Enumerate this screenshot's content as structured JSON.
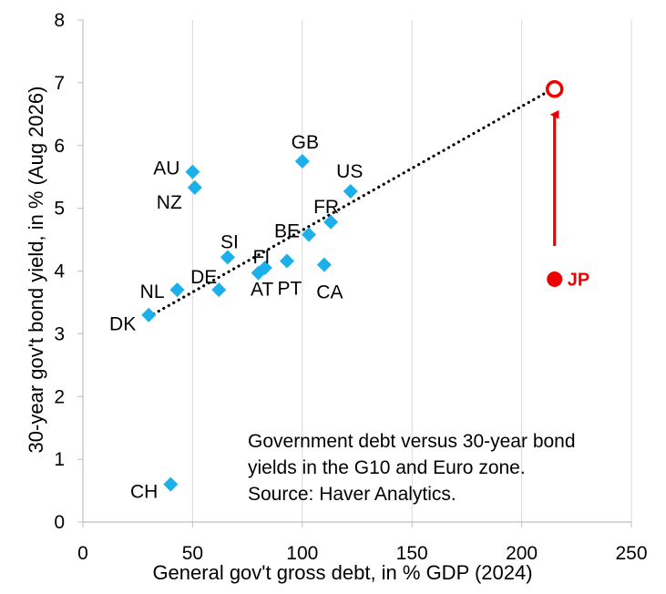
{
  "colors": {
    "marker": "#1cb0ea",
    "highlight": "#ee0000",
    "grid": "#d9d9d9",
    "trend": "#000000",
    "axis": "#bfbfbf"
  },
  "chart_data": {
    "type": "scatter",
    "xlabel": "General gov't gross debt, in % GDP (2024)",
    "ylabel": "30-year gov't bond yield, in % (Aug 2026)",
    "xlim": [
      0,
      250
    ],
    "ylim": [
      0,
      8
    ],
    "x_ticks": [
      "0",
      "50",
      "100",
      "150",
      "200",
      "250"
    ],
    "y_ticks": [
      "0",
      "1",
      "2",
      "3",
      "4",
      "5",
      "6",
      "7",
      "8"
    ],
    "grid": "vertical",
    "points": [
      {
        "label": "DK",
        "x": 30,
        "y": 3.3
      },
      {
        "label": "CH",
        "x": 40,
        "y": 0.6
      },
      {
        "label": "NL",
        "x": 43,
        "y": 3.7
      },
      {
        "label": "AU",
        "x": 50,
        "y": 5.58
      },
      {
        "label": "NZ",
        "x": 51,
        "y": 5.33
      },
      {
        "label": "DE",
        "x": 62,
        "y": 3.7
      },
      {
        "label": "SI",
        "x": 66,
        "y": 4.22
      },
      {
        "label": "AT",
        "x": 80,
        "y": 3.97
      },
      {
        "label": "FI",
        "x": 83,
        "y": 4.05
      },
      {
        "label": "PT",
        "x": 93,
        "y": 4.16
      },
      {
        "label": "GB",
        "x": 100,
        "y": 5.75
      },
      {
        "label": "BE",
        "x": 103,
        "y": 4.58
      },
      {
        "label": "CA",
        "x": 110,
        "y": 4.1
      },
      {
        "label": "FR",
        "x": 113,
        "y": 4.78
      },
      {
        "label": "US",
        "x": 122,
        "y": 5.27
      }
    ],
    "highlight": {
      "label": "JP",
      "x": 215,
      "y": 3.87,
      "target_y": 6.9
    },
    "trendline": {
      "x": [
        30,
        215
      ],
      "y": [
        3.27,
        6.92
      ],
      "style": "dotted"
    },
    "annotation": [
      "Government debt versus 30-year bond",
      "yields in the G10 and Euro zone.",
      "Source: Haver Analytics."
    ]
  }
}
